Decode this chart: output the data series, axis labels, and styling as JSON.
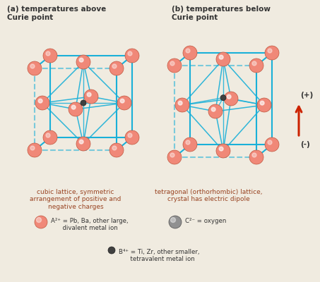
{
  "title_a": "(a) temperatures above\nCurie point",
  "title_b": "(b) temperatures below\nCurie point",
  "caption_a": "cubic lattice, symmetric\narrangement of positive and\nnegative charges",
  "caption_b": "tetragonal (orthorhombic) lattice,\ncrystal has electric dipole",
  "legend_A": "A²⁺ = Pb, Ba, other large,\n      divalent metal ion",
  "legend_B": "B⁴⁺ = Ti, Zr, other smaller,\n      tetravalent metal ion",
  "legend_C": "C²⁻ = oxygen",
  "color_A": "#f08878",
  "color_C": "#909090",
  "color_lines": "#1ab0d8",
  "color_arrow": "#cc2200",
  "bg_color": "#f0ebe0",
  "text_color_title": "#333333",
  "text_color_caption": "#994422",
  "rA": 10,
  "rB": 4,
  "rC": 9,
  "lw_cube": 1.5,
  "lw_inner": 1.1
}
